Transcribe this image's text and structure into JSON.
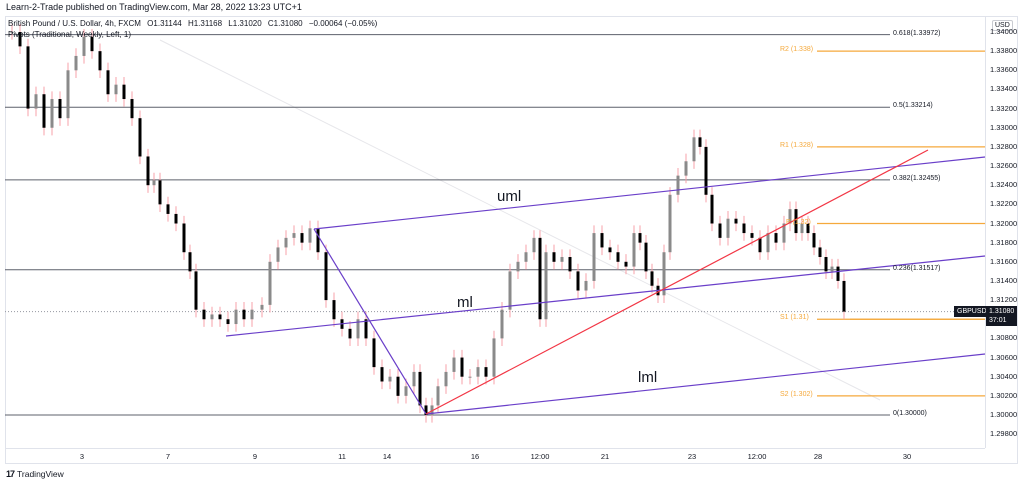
{
  "header": {
    "published": "Learn-2-Trade published on TradingView.com, Mar 28, 2022 13:23 UTC+1",
    "symbol_desc": "British Pound / U.S. Dollar, 4h, FXCM",
    "open": "O1.31144",
    "high": "H1.31168",
    "low": "L1.31020",
    "close": "C1.31080",
    "change": "−0.00064 (−0.05%)",
    "indicator": "Pivots (Traditional, Weekly, Left, 1)"
  },
  "price_scale": {
    "currency": "USD",
    "ticks": [
      "1.34000",
      "1.33800",
      "1.33600",
      "1.33400",
      "1.33200",
      "1.33000",
      "1.32800",
      "1.32600",
      "1.32400",
      "1.32200",
      "1.32000",
      "1.31800",
      "1.31600",
      "1.31400",
      "1.31200",
      "1.30800",
      "1.30600",
      "1.30400",
      "1.30200",
      "1.30000",
      "1.29800"
    ],
    "symbol_tag": "GBPUSD",
    "last_price": "1.31080",
    "countdown": "37:01"
  },
  "time_axis": {
    "labels": [
      "3",
      "7",
      "9",
      "11",
      "14",
      "16",
      "12:00",
      "21",
      "23",
      "12:00",
      "28",
      "30"
    ]
  },
  "fib_levels": [
    {
      "label": "0.618(1.33972)",
      "price": 1.33972
    },
    {
      "label": "0.5(1.33214)",
      "price": 1.33214
    },
    {
      "label": "0.382(1.32455)",
      "price": 1.32455
    },
    {
      "label": "0.236(1.31517)",
      "price": 1.31517
    },
    {
      "label": "0(1.30000)",
      "price": 1.3
    }
  ],
  "pivots": [
    {
      "label": "R2 (1.338)",
      "price": 1.338
    },
    {
      "label": "R1 (1.328)",
      "price": 1.328
    },
    {
      "label": "P (1.32)",
      "price": 1.32
    },
    {
      "label": "S1 (1.31)",
      "price": 1.31
    },
    {
      "label": "S2 (1.302)",
      "price": 1.302
    }
  ],
  "pitchfork_labels": {
    "upper": "uml",
    "median": "ml",
    "lower": "lml"
  },
  "branding": {
    "logo_text": "TradingView",
    "logo_mark": "17"
  },
  "colors": {
    "pitchfork": "#6a3fc9",
    "trendline": "#f23645",
    "pivot": "#f5a93c",
    "fib": "#5d606b",
    "candle_up": "#8a8a8a",
    "candle_down": "#000000",
    "wick": "#f7a1a8"
  },
  "chart_data": {
    "type": "candlestick",
    "title": "British Pound / U.S. Dollar, 4h, FXCM",
    "symbol": "GBPUSD",
    "timeframe": "4h",
    "xlabel": "",
    "ylabel": "USD",
    "ylim": [
      1.297,
      1.342
    ],
    "x_ticks": [
      "3",
      "7",
      "9",
      "11",
      "14",
      "16",
      "12:00",
      "21",
      "23",
      "12:00",
      "28",
      "30"
    ],
    "last": {
      "open": 1.31144,
      "high": 1.31168,
      "low": 1.3102,
      "close": 1.3108,
      "change": -0.00064,
      "change_pct": -0.05
    },
    "approx_price_path": [
      {
        "x": "Mar 2",
        "price": 1.34
      },
      {
        "x": "Mar 3",
        "price": 1.333
      },
      {
        "x": "Mar 4",
        "price": 1.3385
      },
      {
        "x": "Mar 4 (late)",
        "price": 1.334
      },
      {
        "x": "Mar 7",
        "price": 1.315
      },
      {
        "x": "Mar 8",
        "price": 1.31
      },
      {
        "x": "Mar 9",
        "price": 1.317
      },
      {
        "x": "Mar 10",
        "price": 1.3195
      },
      {
        "x": "Mar 11",
        "price": 1.309
      },
      {
        "x": "Mar 14",
        "price": 1.302
      },
      {
        "x": "Mar 15",
        "price": 1.3
      },
      {
        "x": "Mar 16",
        "price": 1.306
      },
      {
        "x": "Mar 17",
        "price": 1.318
      },
      {
        "x": "Mar 18",
        "price": 1.317
      },
      {
        "x": "Mar 21",
        "price": 1.3175
      },
      {
        "x": "Mar 22",
        "price": 1.313
      },
      {
        "x": "Mar 23",
        "price": 1.3295
      },
      {
        "x": "Mar 24",
        "price": 1.319
      },
      {
        "x": "Mar 25",
        "price": 1.322
      },
      {
        "x": "Mar 28",
        "price": 1.3108
      }
    ],
    "annotations": {
      "fibonacci": [
        {
          "level": 0.618,
          "price": 1.33972
        },
        {
          "level": 0.5,
          "price": 1.33214
        },
        {
          "level": 0.382,
          "price": 1.32455
        },
        {
          "level": 0.236,
          "price": 1.31517
        },
        {
          "level": 0,
          "price": 1.3
        }
      ],
      "weekly_pivots": [
        {
          "name": "R2",
          "price": 1.338
        },
        {
          "name": "R1",
          "price": 1.328
        },
        {
          "name": "P",
          "price": 1.32
        },
        {
          "name": "S1",
          "price": 1.31
        },
        {
          "name": "S2",
          "price": 1.302
        }
      ],
      "pitchfork": [
        "uml",
        "ml",
        "lml"
      ],
      "uptrend_line": "red ascending line from Mar 15 low through Mar 22 low"
    },
    "grid": false,
    "legend_position": "top-left"
  }
}
